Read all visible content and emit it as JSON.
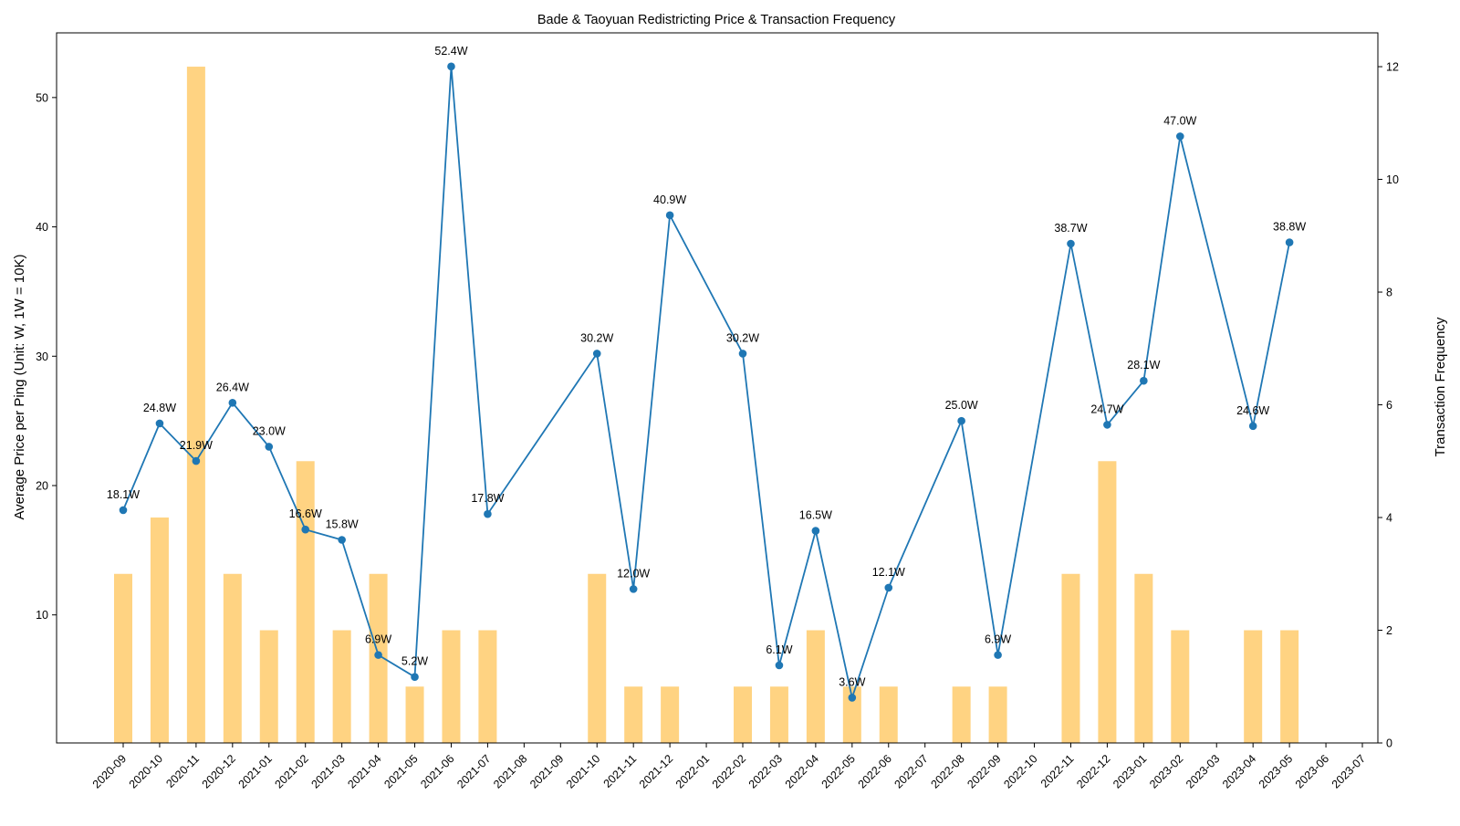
{
  "chart_data": {
    "type": "bar+line",
    "title": "Bade & Taoyuan Redistricting Price & Transaction Frequency",
    "ylabel_left": "Average Price per Ping (Unit: W, 1W = 10K)",
    "ylabel_right": "Transaction Frequency",
    "categories": [
      "2020-09",
      "2020-10",
      "2020-11",
      "2020-12",
      "2021-01",
      "2021-02",
      "2021-03",
      "2021-04",
      "2021-05",
      "2021-06",
      "2021-07",
      "2021-08",
      "2021-09",
      "2021-10",
      "2021-11",
      "2021-12",
      "2022-01",
      "2022-02",
      "2022-03",
      "2022-04",
      "2022-05",
      "2022-06",
      "2022-07",
      "2022-08",
      "2022-09",
      "2022-10",
      "2022-11",
      "2022-12",
      "2023-01",
      "2023-02",
      "2023-03",
      "2023-04",
      "2023-05",
      "2023-06",
      "2023-07"
    ],
    "price_series": {
      "color": "#1f77b4",
      "points": [
        {
          "x": "2020-09",
          "value": 18.1,
          "label": "18.1W"
        },
        {
          "x": "2020-10",
          "value": 24.8,
          "label": "24.8W"
        },
        {
          "x": "2020-11",
          "value": 21.9,
          "label": "21.9W"
        },
        {
          "x": "2020-12",
          "value": 26.4,
          "label": "26.4W"
        },
        {
          "x": "2021-01",
          "value": 23.0,
          "label": "23.0W"
        },
        {
          "x": "2021-02",
          "value": 16.6,
          "label": "16.6W"
        },
        {
          "x": "2021-03",
          "value": 15.8,
          "label": "15.8W"
        },
        {
          "x": "2021-04",
          "value": 6.9,
          "label": "6.9W"
        },
        {
          "x": "2021-05",
          "value": 5.2,
          "label": "5.2W"
        },
        {
          "x": "2021-06",
          "value": 52.4,
          "label": "52.4W"
        },
        {
          "x": "2021-07",
          "value": 17.8,
          "label": "17.8W"
        },
        {
          "x": "2021-10",
          "value": 30.2,
          "label": "30.2W"
        },
        {
          "x": "2021-11",
          "value": 12.0,
          "label": "12.0W"
        },
        {
          "x": "2021-12",
          "value": 40.9,
          "label": "40.9W"
        },
        {
          "x": "2022-02",
          "value": 30.2,
          "label": "30.2W"
        },
        {
          "x": "2022-03",
          "value": 6.1,
          "label": "6.1W"
        },
        {
          "x": "2022-04",
          "value": 16.5,
          "label": "16.5W"
        },
        {
          "x": "2022-05",
          "value": 3.6,
          "label": "3.6W"
        },
        {
          "x": "2022-06",
          "value": 12.1,
          "label": "12.1W"
        },
        {
          "x": "2022-08",
          "value": 25.0,
          "label": "25.0W"
        },
        {
          "x": "2022-09",
          "value": 6.9,
          "label": "6.9W"
        },
        {
          "x": "2022-11",
          "value": 38.7,
          "label": "38.7W"
        },
        {
          "x": "2022-12",
          "value": 24.7,
          "label": "24.7W"
        },
        {
          "x": "2023-01",
          "value": 28.1,
          "label": "28.1W"
        },
        {
          "x": "2023-02",
          "value": 47.0,
          "label": "47.0W"
        },
        {
          "x": "2023-04",
          "value": 24.6,
          "label": "24.6W"
        },
        {
          "x": "2023-05",
          "value": 38.8,
          "label": "38.8W"
        }
      ]
    },
    "frequency_series": {
      "color": "#ffc04d",
      "points": [
        {
          "x": "2020-09",
          "value": 3
        },
        {
          "x": "2020-10",
          "value": 4
        },
        {
          "x": "2020-11",
          "value": 12
        },
        {
          "x": "2020-12",
          "value": 3
        },
        {
          "x": "2021-01",
          "value": 2
        },
        {
          "x": "2021-02",
          "value": 5
        },
        {
          "x": "2021-03",
          "value": 2
        },
        {
          "x": "2021-04",
          "value": 3
        },
        {
          "x": "2021-05",
          "value": 1
        },
        {
          "x": "2021-06",
          "value": 2
        },
        {
          "x": "2021-07",
          "value": 2
        },
        {
          "x": "2021-10",
          "value": 3
        },
        {
          "x": "2021-11",
          "value": 1
        },
        {
          "x": "2021-12",
          "value": 1
        },
        {
          "x": "2022-02",
          "value": 1
        },
        {
          "x": "2022-03",
          "value": 1
        },
        {
          "x": "2022-04",
          "value": 2
        },
        {
          "x": "2022-05",
          "value": 1
        },
        {
          "x": "2022-06",
          "value": 1
        },
        {
          "x": "2022-08",
          "value": 1
        },
        {
          "x": "2022-09",
          "value": 1
        },
        {
          "x": "2022-11",
          "value": 3
        },
        {
          "x": "2022-12",
          "value": 5
        },
        {
          "x": "2023-01",
          "value": 3
        },
        {
          "x": "2023-02",
          "value": 2
        },
        {
          "x": "2023-04",
          "value": 2
        },
        {
          "x": "2023-05",
          "value": 2
        }
      ]
    },
    "ylim_left": [
      0.1,
      55
    ],
    "yticks_left": [
      10,
      20,
      30,
      40,
      50
    ],
    "ylim_right": [
      0,
      12.6
    ],
    "yticks_right": [
      0,
      2,
      4,
      6,
      8,
      10,
      12
    ],
    "grid": false,
    "legend": "none"
  }
}
